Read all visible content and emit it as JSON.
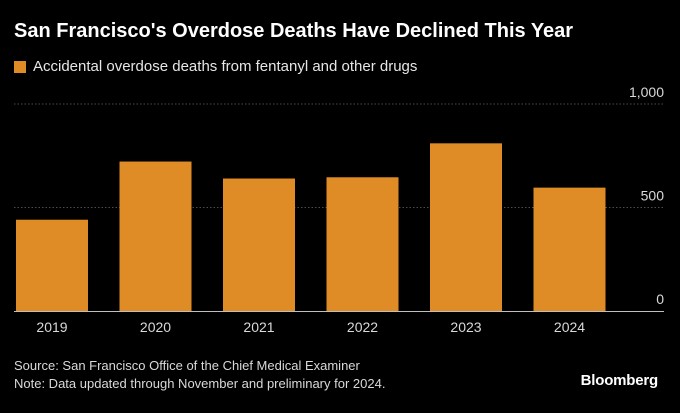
{
  "title": "San Francisco's Overdose Deaths Have Declined This Year",
  "legend": {
    "label": "Accidental overdose deaths from fentanyl and other drugs"
  },
  "colors": {
    "bar": "#e08c26",
    "background": "#000000",
    "grid": "#4d4d4d",
    "axis": "#bfbfbf",
    "text": "#d9d9d9"
  },
  "chart_data": {
    "type": "bar",
    "title": "San Francisco's Overdose Deaths Have Declined This Year",
    "categories": [
      "2019",
      "2020",
      "2021",
      "2022",
      "2023",
      "2024"
    ],
    "series": [
      {
        "name": "Accidental overdose deaths from fentanyl and other drugs",
        "values": [
          441,
          722,
          640,
          646,
          810,
          596
        ]
      }
    ],
    "ylim": [
      0,
      1000
    ],
    "yticks": [
      0,
      500,
      1000
    ],
    "ytick_labels": [
      "0",
      "500",
      "1,000"
    ],
    "xlabel": "",
    "ylabel": "",
    "grid": true,
    "legend_position": "top-left",
    "y_axis_side": "right"
  },
  "footer": {
    "source": "Source: San Francisco Office of the Chief Medical Examiner",
    "note": "Note: Data updated through November and preliminary for 2024."
  },
  "brand": "Bloomberg"
}
